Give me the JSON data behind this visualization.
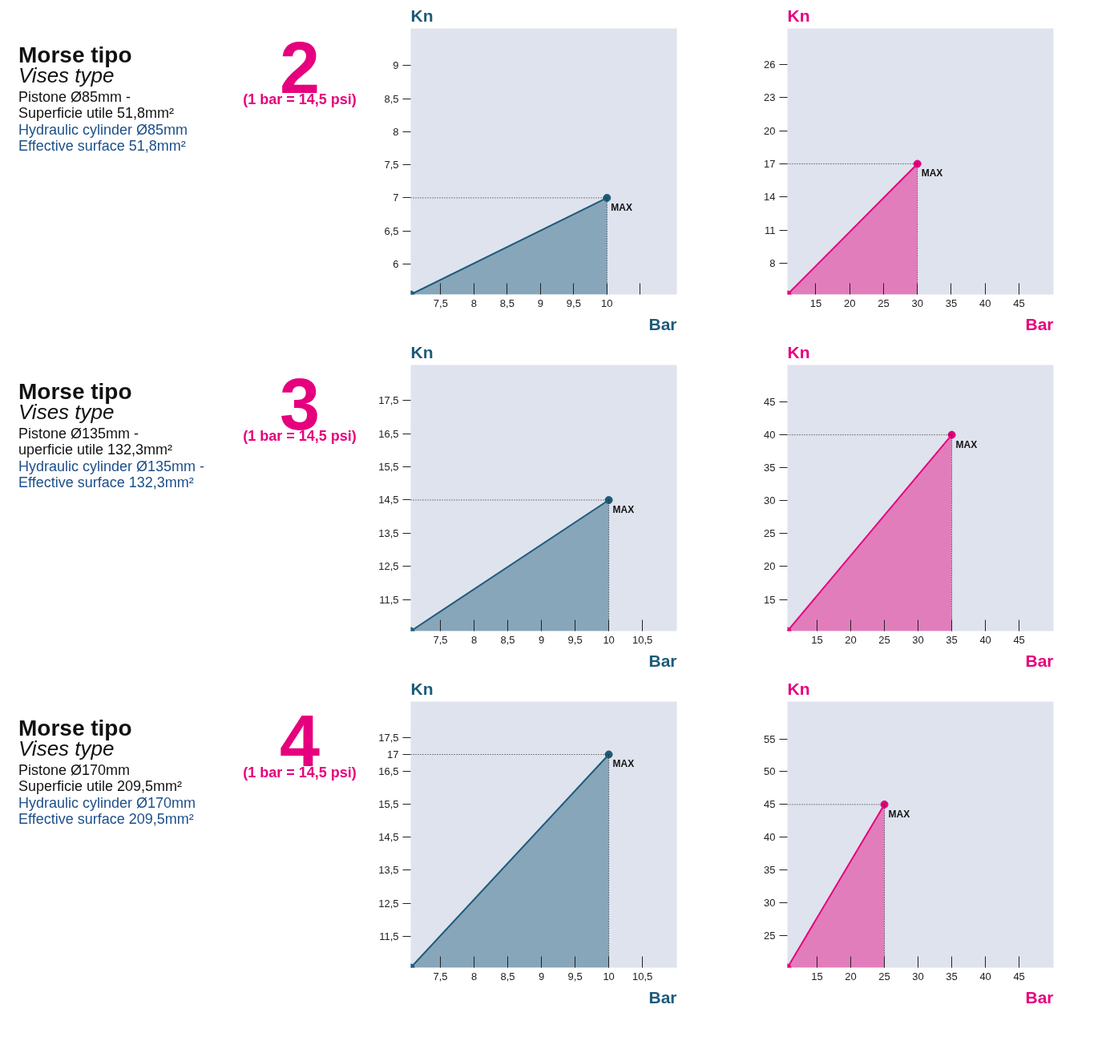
{
  "chart_data": [
    {
      "type": "other",
      "title": "Morse tipo",
      "subtitle": "Vises type",
      "annotations": [
        "Pistone Ø85mm -",
        "Superficie utile 51,8mm²",
        "Hydraulic cylinder Ø85mm",
        "Effective surface 51,8mm²",
        "2",
        "(1 bar = 14,5 psi)"
      ]
    },
    {
      "type": "area",
      "ylabel": "Kn",
      "xlabel": "Bar",
      "xlim": [
        7.05,
        11.05
      ],
      "ylim": [
        5.54,
        9.56
      ],
      "marker": "circle",
      "xticks": [
        {
          "value": 7.5,
          "label": "7,5"
        },
        8,
        {
          "value": 8.5,
          "label": "8,5"
        },
        9,
        {
          "value": 9.5,
          "label": "9,5"
        },
        {
          "value": 10,
          "label": null
        },
        {
          "value": 10.5,
          "label": null
        }
      ],
      "yticks": [
        6,
        {
          "value": 6.5,
          "label": "6,5"
        },
        {
          "value": 7,
          "label": null
        },
        {
          "value": 7.5,
          "label": "7,5"
        },
        8,
        {
          "value": 8.5,
          "label": "8,5"
        },
        9
      ],
      "series": [
        {
          "color": "#1d5b7a",
          "x": [
            7.05,
            10
          ],
          "values": [
            5.54,
            7
          ]
        }
      ],
      "ref_lines": [
        {
          "axis": "x",
          "value": 10,
          "label": "10"
        },
        {
          "axis": "y",
          "value": 7,
          "label": "7"
        }
      ],
      "annotations": [
        {
          "text": "MAX",
          "x": 10,
          "y": 7
        }
      ]
    },
    {
      "type": "area",
      "ylabel": "Kn",
      "xlabel": "Bar",
      "xlim": [
        10.8,
        50.1
      ],
      "ylim": [
        5.18,
        29.25
      ],
      "marker": "circle",
      "xticks": [
        15,
        20,
        25,
        {
          "value": 30,
          "label": null
        },
        35,
        40,
        45
      ],
      "yticks": [
        8,
        11,
        14,
        {
          "value": 17,
          "label": null
        },
        20,
        23,
        26
      ],
      "series": [
        {
          "color": "#e6007e",
          "x": [
            10.8,
            30
          ],
          "values": [
            5.18,
            17
          ]
        }
      ],
      "ref_lines": [
        {
          "axis": "x",
          "value": 30,
          "label": "30"
        },
        {
          "axis": "y",
          "value": 17,
          "label": "17"
        }
      ],
      "annotations": [
        {
          "text": "MAX",
          "x": 30,
          "y": 17
        }
      ]
    },
    {
      "type": "other",
      "title": "Morse tipo",
      "subtitle": "Vises type",
      "annotations": [
        "Pistone Ø135mm -",
        "uperficie utile 132,3mm²",
        "Hydraulic cylinder Ø135mm -",
        "Effective surface 132,3mm²",
        "3",
        "(1 bar = 14,5 psi)"
      ]
    },
    {
      "type": "area",
      "ylabel": "Kn",
      "xlabel": "Bar",
      "xlim": [
        7.06,
        11.01
      ],
      "ylim": [
        10.55,
        18.57
      ],
      "marker": "circle",
      "xticks": [
        {
          "value": 7.5,
          "label": "7,5"
        },
        8,
        {
          "value": 8.5,
          "label": "8,5"
        },
        9,
        {
          "value": 9.5,
          "label": "9,5"
        },
        {
          "value": 10,
          "label": null
        },
        {
          "value": 10.5,
          "label": "10,5"
        }
      ],
      "yticks": [
        {
          "value": 11.5,
          "label": "11,5"
        },
        {
          "value": 12.5,
          "label": "12,5"
        },
        {
          "value": 13.5,
          "label": "13,5"
        },
        {
          "value": 14.5,
          "label": null
        },
        {
          "value": 15.5,
          "label": "15,5"
        },
        {
          "value": 16.5,
          "label": "16,5"
        },
        {
          "value": 17.5,
          "label": "17,5"
        }
      ],
      "series": [
        {
          "color": "#1d5b7a",
          "x": [
            7.06,
            10
          ],
          "values": [
            10.55,
            14.5
          ]
        }
      ],
      "ref_lines": [
        {
          "axis": "x",
          "value": 10,
          "label": "10"
        },
        {
          "axis": "y",
          "value": 14.5,
          "label": "14,5"
        }
      ],
      "annotations": [
        {
          "text": "MAX",
          "x": 10,
          "y": 14.5
        }
      ]
    },
    {
      "type": "area",
      "ylabel": "Kn",
      "xlabel": "Bar",
      "xlim": [
        10.6,
        50.1
      ],
      "ylim": [
        10.2,
        50.6
      ],
      "marker": "circle",
      "xticks": [
        15,
        20,
        25,
        30,
        {
          "value": 35,
          "label": null
        },
        40,
        45
      ],
      "yticks": [
        15,
        20,
        25,
        30,
        35,
        {
          "value": 40,
          "label": null
        },
        45
      ],
      "series": [
        {
          "color": "#e6007e",
          "x": [
            10.6,
            35
          ],
          "values": [
            10.2,
            40
          ]
        }
      ],
      "ref_lines": [
        {
          "axis": "x",
          "value": 35,
          "label": "35"
        },
        {
          "axis": "y",
          "value": 40,
          "label": "40"
        }
      ],
      "annotations": [
        {
          "text": "MAX",
          "x": 35,
          "y": 40
        }
      ]
    },
    {
      "type": "other",
      "title": "Morse tipo",
      "subtitle": "Vises type",
      "annotations": [
        "Pistone Ø170mm",
        "Superficie utile 209,5mm²",
        "Hydraulic cylinder Ø170mm",
        "Effective surface 209,5mm²",
        "4",
        "(1 bar = 14,5 psi)"
      ]
    },
    {
      "type": "area",
      "ylabel": "Kn",
      "xlabel": "Bar",
      "xlim": [
        7.06,
        11.01
      ],
      "ylim": [
        10.55,
        18.6
      ],
      "marker": "circle",
      "xticks": [
        {
          "value": 7.5,
          "label": "7,5"
        },
        8,
        {
          "value": 8.5,
          "label": "8,5"
        },
        9,
        {
          "value": 9.5,
          "label": "9,5"
        },
        {
          "value": 10,
          "label": null
        },
        {
          "value": 10.5,
          "label": "10,5"
        }
      ],
      "yticks": [
        {
          "value": 11.5,
          "label": "11,5"
        },
        {
          "value": 12.5,
          "label": "12,5"
        },
        {
          "value": 13.5,
          "label": "13,5"
        },
        {
          "value": 14.5,
          "label": "14,5"
        },
        {
          "value": 15.5,
          "label": "15,5"
        },
        {
          "value": 16.5,
          "label": "16,5"
        },
        {
          "value": 17,
          "label": null
        },
        {
          "value": 17.5,
          "label": "17,5"
        }
      ],
      "series": [
        {
          "color": "#1d5b7a",
          "x": [
            7.06,
            10
          ],
          "values": [
            10.55,
            17
          ]
        }
      ],
      "ref_lines": [
        {
          "axis": "x",
          "value": 10,
          "label": "10"
        },
        {
          "axis": "y",
          "value": 17,
          "label": "17"
        }
      ],
      "annotations": [
        {
          "text": "MAX",
          "x": 10,
          "y": 17
        }
      ]
    },
    {
      "type": "area",
      "ylabel": "Kn",
      "xlabel": "Bar",
      "xlim": [
        10.6,
        50.1
      ],
      "ylim": [
        20.1,
        60.7
      ],
      "marker": "circle",
      "xticks": [
        15,
        20,
        {
          "value": 25,
          "label": null
        },
        30,
        35,
        40,
        45
      ],
      "yticks": [
        25,
        30,
        35,
        40,
        {
          "value": 45,
          "label": null
        },
        50,
        55
      ],
      "series": [
        {
          "color": "#e6007e",
          "x": [
            10.6,
            25
          ],
          "values": [
            20.1,
            45
          ]
        }
      ],
      "ref_lines": [
        {
          "axis": "x",
          "value": 25,
          "label": "25"
        },
        {
          "axis": "y",
          "value": 45,
          "label": "45"
        }
      ],
      "annotations": [
        {
          "text": "MAX",
          "x": 25,
          "y": 45
        }
      ]
    }
  ]
}
